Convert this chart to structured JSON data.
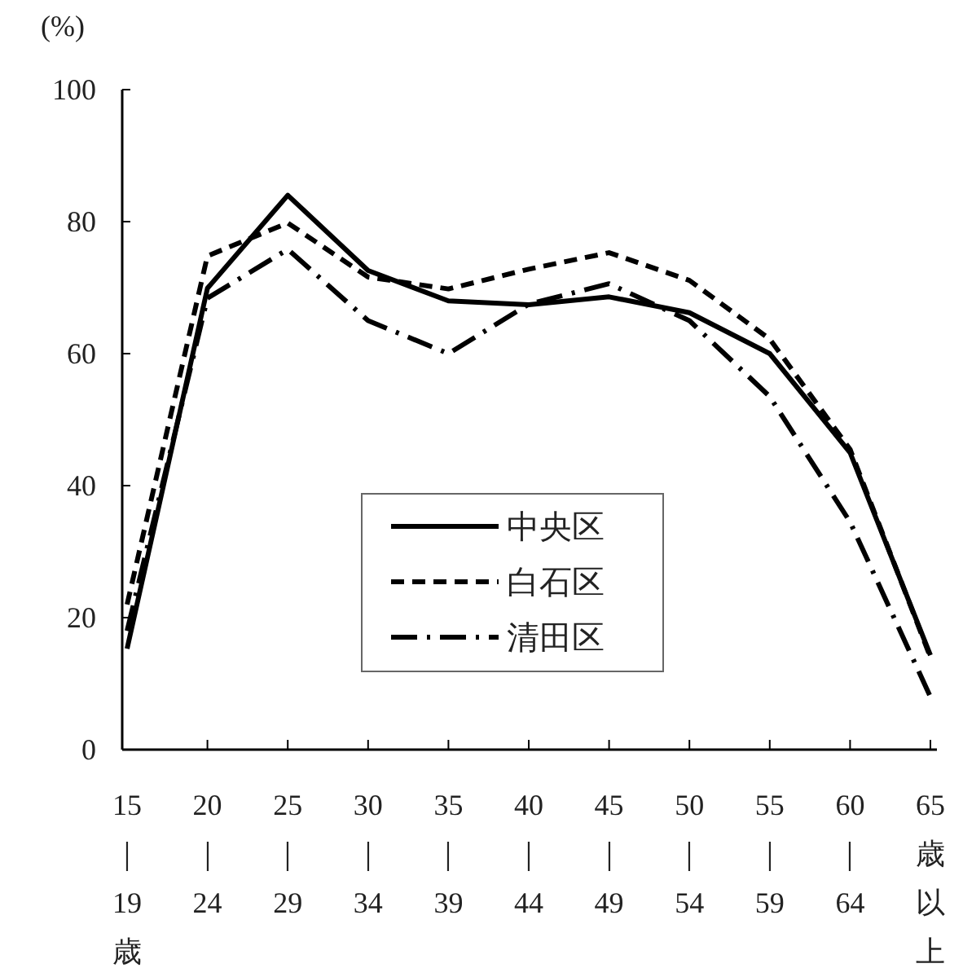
{
  "chart_data": {
    "type": "line",
    "ylabel": "(%)",
    "categories": [
      "15｜19歳",
      "20｜24",
      "25｜29",
      "30｜34",
      "35｜39",
      "40｜44",
      "45｜49",
      "50｜54",
      "55｜59",
      "60｜64",
      "65歳以上"
    ],
    "series": [
      {
        "name": "中央区",
        "color": "#000000",
        "line_style": "solid",
        "values": [
          15.3,
          69.9,
          84,
          72.6,
          68,
          67.4,
          68.6,
          66.2,
          60,
          45,
          14.3
        ]
      },
      {
        "name": "白石区",
        "color": "#000000",
        "line_style": "dashed",
        "values": [
          22,
          74.8,
          79.8,
          71.6,
          69.8,
          72.8,
          75.3,
          71.1,
          62.2,
          45.5,
          14
        ]
      },
      {
        "name": "清田区",
        "color": "#000000",
        "line_style": "dashdot",
        "values": [
          18,
          68.4,
          75.8,
          65,
          60,
          67.5,
          70.6,
          65,
          53.5,
          34.5,
          8
        ]
      }
    ],
    "ylim": [
      0,
      100
    ],
    "yticks": [
      0,
      20,
      40,
      60,
      80,
      100
    ],
    "grid": false,
    "legend": "center",
    "marker": "none"
  }
}
